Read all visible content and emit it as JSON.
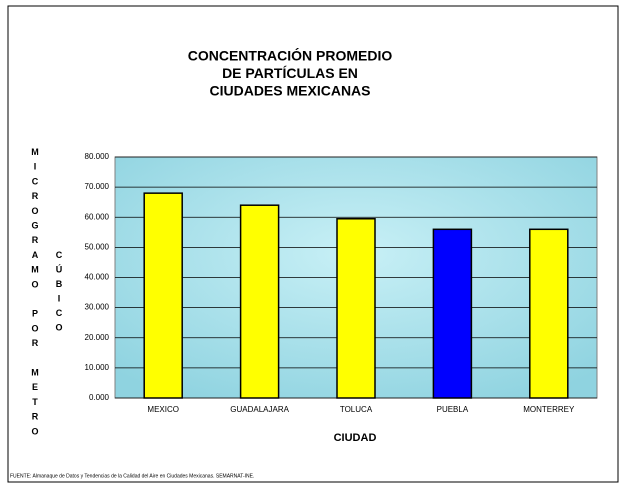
{
  "chart_data": {
    "type": "bar",
    "title": [
      "CONCENTRACIÓN PROMEDIO",
      "DE PARTÍCULAS EN",
      "CIUDADES MEXICANAS"
    ],
    "y_label": [
      "MICROGRAMO POR METRO",
      "CÚBICO"
    ],
    "x_label": "CIUDAD",
    "categories": [
      "MEXICO",
      "GUADALAJARA",
      "TOLUCA",
      "PUEBLA",
      "MONTERREY"
    ],
    "values": [
      68,
      64,
      59.5,
      56,
      56
    ],
    "colors": [
      "#ffff00",
      "#ffff00",
      "#ffff00",
      "#0000ff",
      "#ffff00"
    ],
    "ylim": [
      0,
      80
    ],
    "yticks": [
      {
        "value": 0,
        "label": "0.000"
      },
      {
        "value": 10,
        "label": "10.000"
      },
      {
        "value": 20,
        "label": "20.000"
      },
      {
        "value": 30,
        "label": "30.000"
      },
      {
        "value": 40,
        "label": "40.000"
      },
      {
        "value": 50,
        "label": "50.000"
      },
      {
        "value": 60,
        "label": "60.000"
      },
      {
        "value": 70,
        "label": "70.000"
      },
      {
        "value": 80,
        "label": "80.000"
      }
    ],
    "grid": true,
    "source": "FUENTE:  Almanaque de Datos  y Tendencias de la Calidad del Aire en Ciudades Mexicanas. SEMARNAT-INE."
  }
}
